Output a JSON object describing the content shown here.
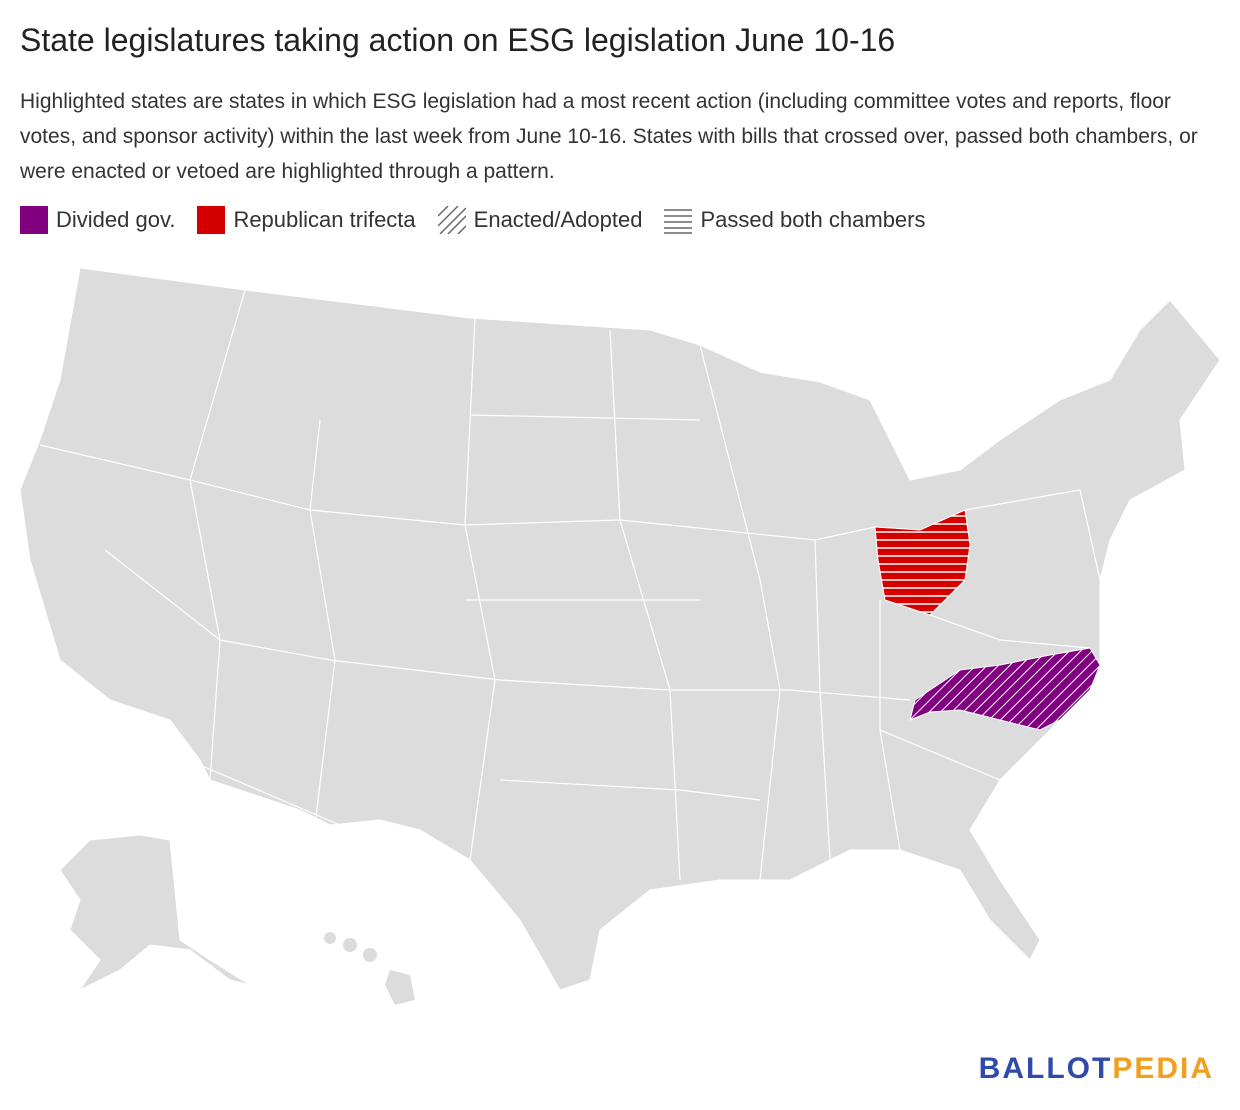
{
  "header": {
    "title": "State legislatures taking action on ESG legislation June 10-16",
    "description": "Highlighted states are states in which ESG legislation had a most recent action (including committee votes and reports, floor votes, and sponsor activity) within the last week from June 10-16. States with bills that crossed over, passed both chambers, or were enacted or vetoed are highlighted through a pattern."
  },
  "legend": [
    {
      "label": "Divided gov.",
      "color": "#800080"
    },
    {
      "label": "Republican trifecta",
      "color": "#d40000"
    },
    {
      "label": "Enacted/Adopted"
    },
    {
      "label": "Passed both chambers"
    }
  ],
  "logo": {
    "first": "BALLOT",
    "second": "PEDIA",
    "first_color": "#2f4aa8",
    "second_color": "#f0a020"
  }
}
